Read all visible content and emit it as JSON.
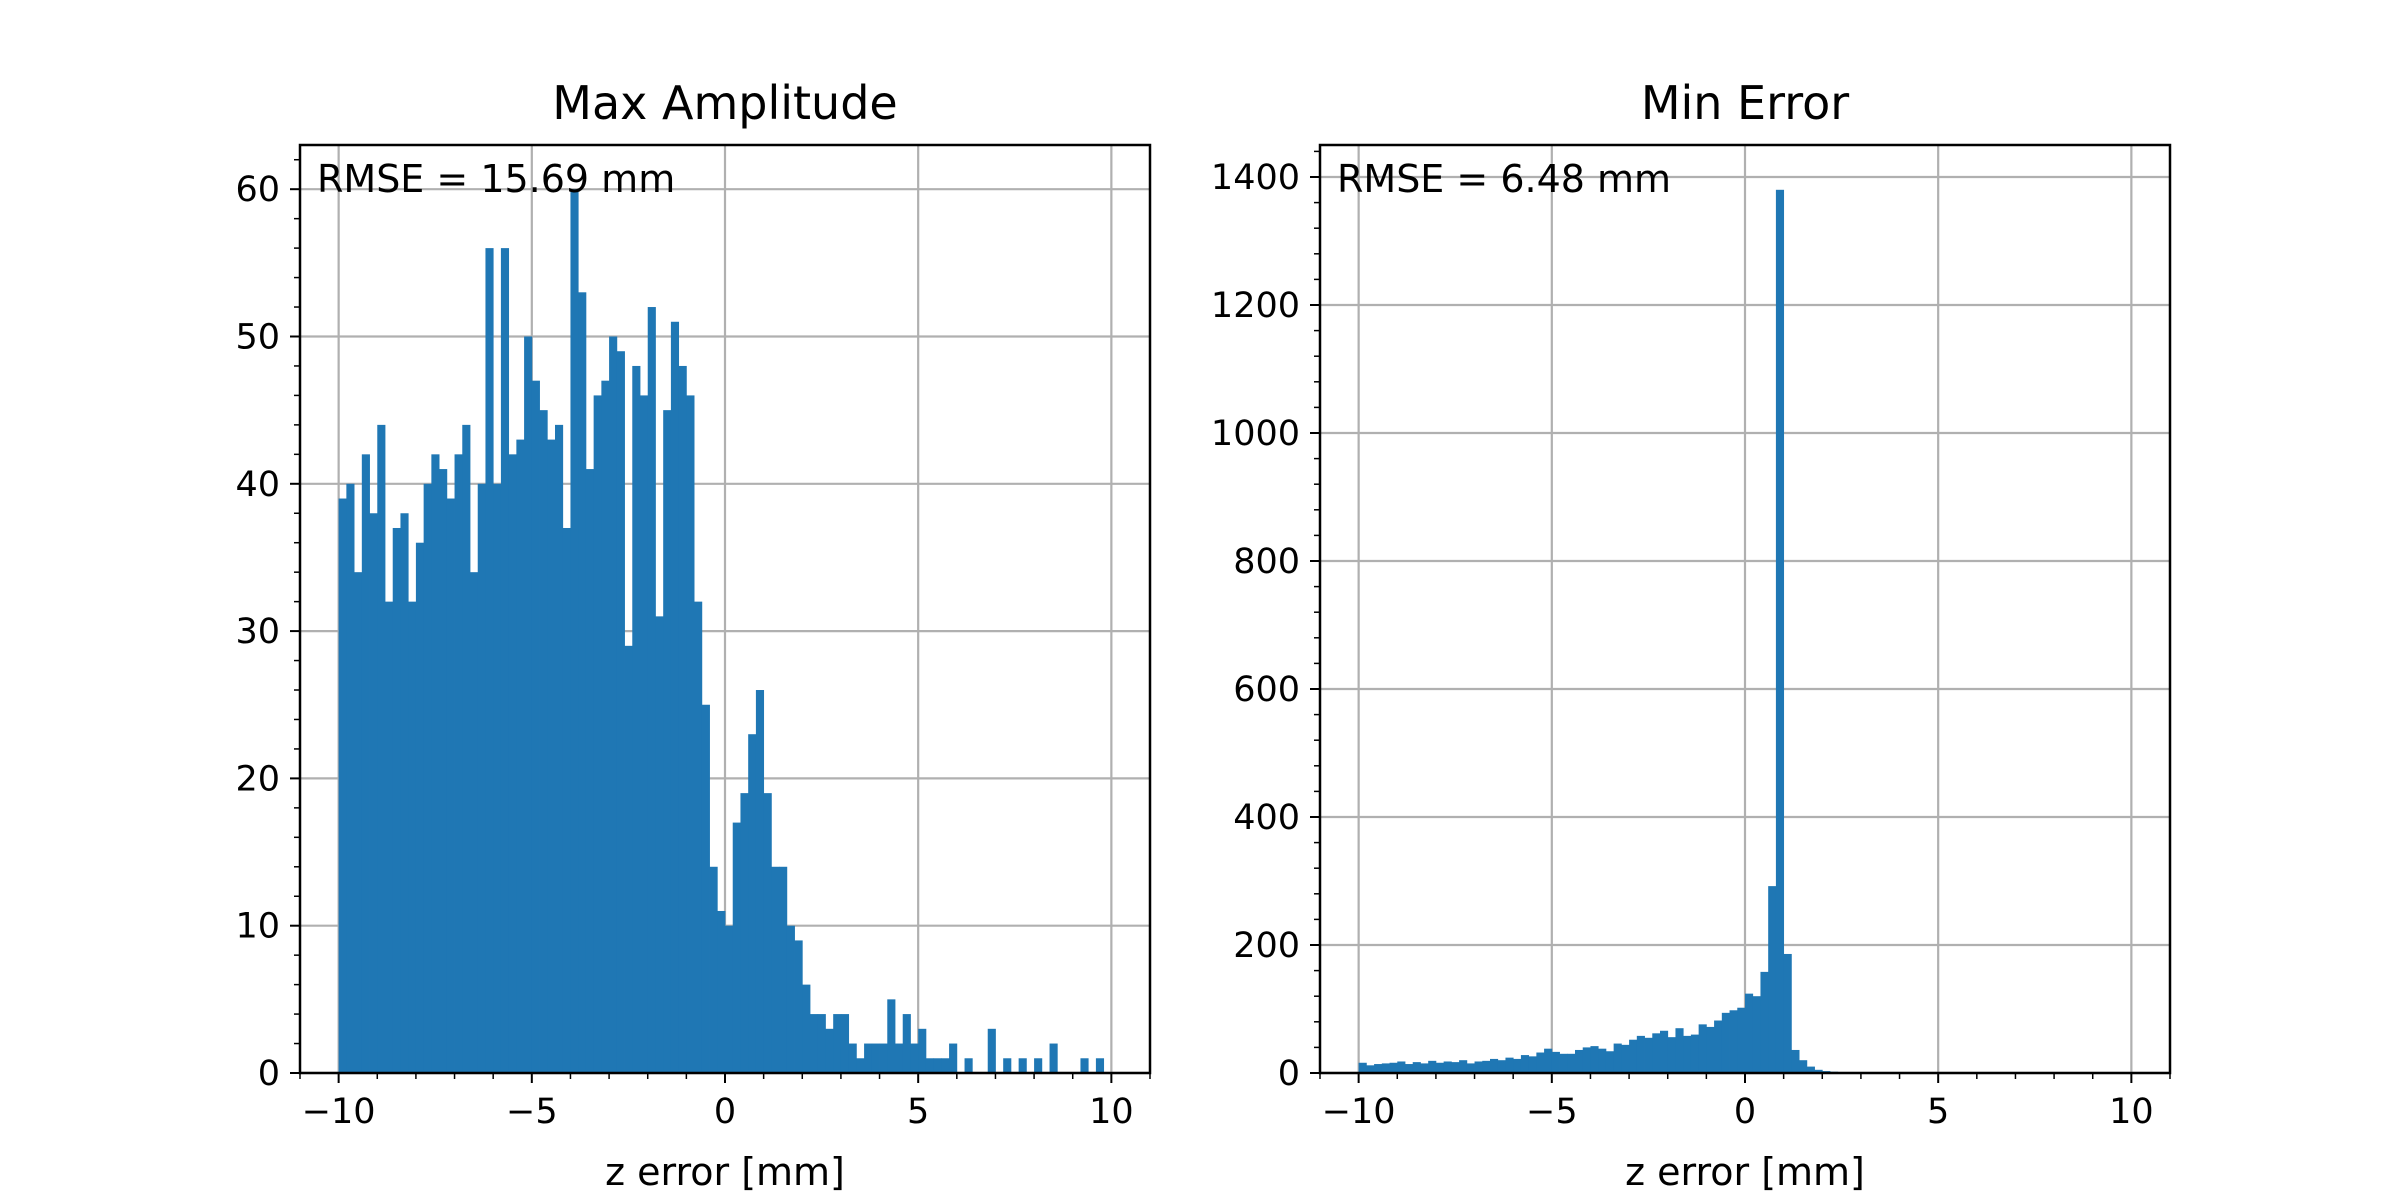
{
  "chart_data": [
    {
      "type": "bar",
      "title": "Max Amplitude",
      "xlabel": "z error [mm]",
      "ylabel": "",
      "annotation": "RMSE = 15.69 mm",
      "xlim": [
        -11,
        11
      ],
      "ylim": [
        0,
        63
      ],
      "xticks": [
        -10,
        -5,
        0,
        5,
        10
      ],
      "xtick_labels": [
        "−10",
        "−5",
        "0",
        "5",
        "10"
      ],
      "yticks": [
        0,
        10,
        20,
        30,
        40,
        50,
        60
      ],
      "ytick_labels": [
        "0",
        "10",
        "20",
        "30",
        "40",
        "50",
        "60"
      ],
      "grid": true,
      "color": "#1f77b4",
      "bin_range": [
        -10,
        10
      ],
      "bins": 100,
      "values": [
        39,
        40,
        34,
        42,
        38,
        44,
        32,
        37,
        38,
        32,
        36,
        40,
        42,
        41,
        39,
        42,
        44,
        34,
        40,
        56,
        40,
        56,
        42,
        43,
        50,
        47,
        45,
        43,
        44,
        37,
        60,
        53,
        41,
        46,
        47,
        50,
        49,
        29,
        48,
        46,
        52,
        31,
        45,
        51,
        48,
        46,
        32,
        25,
        14,
        11,
        10,
        17,
        19,
        23,
        26,
        19,
        14,
        14,
        10,
        9,
        6,
        4,
        4,
        3,
        4,
        4,
        2,
        1,
        2,
        2,
        2,
        5,
        2,
        4,
        2,
        3,
        1,
        1,
        1,
        2,
        0,
        1,
        0,
        0,
        3,
        0,
        1,
        0,
        1,
        0,
        1,
        0,
        2,
        0,
        0,
        0,
        1,
        0,
        1,
        0
      ]
    },
    {
      "type": "bar",
      "title": "Min Error",
      "xlabel": "z error [mm]",
      "ylabel": "",
      "annotation": "RMSE = 6.48 mm",
      "xlim": [
        -11,
        11
      ],
      "ylim": [
        0,
        1450
      ],
      "xticks": [
        -10,
        -5,
        0,
        5,
        10
      ],
      "xtick_labels": [
        "−10",
        "−5",
        "0",
        "5",
        "10"
      ],
      "yticks": [
        0,
        200,
        400,
        600,
        800,
        1000,
        1200,
        1400
      ],
      "ytick_labels": [
        "0",
        "200",
        "400",
        "600",
        "800",
        "1000",
        "1200",
        "1400"
      ],
      "grid": true,
      "color": "#1f77b4",
      "bin_range": [
        -10,
        10
      ],
      "bins": 100,
      "values": [
        16,
        12,
        14,
        15,
        16,
        18,
        14,
        17,
        15,
        19,
        16,
        18,
        17,
        20,
        15,
        18,
        19,
        22,
        20,
        24,
        22,
        28,
        26,
        32,
        38,
        33,
        30,
        30,
        36,
        40,
        42,
        38,
        34,
        46,
        44,
        52,
        58,
        55,
        62,
        66,
        56,
        70,
        58,
        60,
        76,
        72,
        82,
        94,
        98,
        102,
        124,
        120,
        158,
        292,
        1380,
        186,
        36,
        20,
        10,
        5,
        3,
        2,
        1,
        1,
        1,
        0,
        0,
        0,
        0,
        0,
        0,
        0,
        0,
        0,
        0,
        0,
        0,
        0,
        0,
        0,
        0,
        0,
        0,
        0,
        0,
        0,
        0,
        0,
        0,
        0,
        0,
        0,
        0,
        0,
        0,
        0,
        0,
        0,
        0,
        0
      ]
    }
  ]
}
